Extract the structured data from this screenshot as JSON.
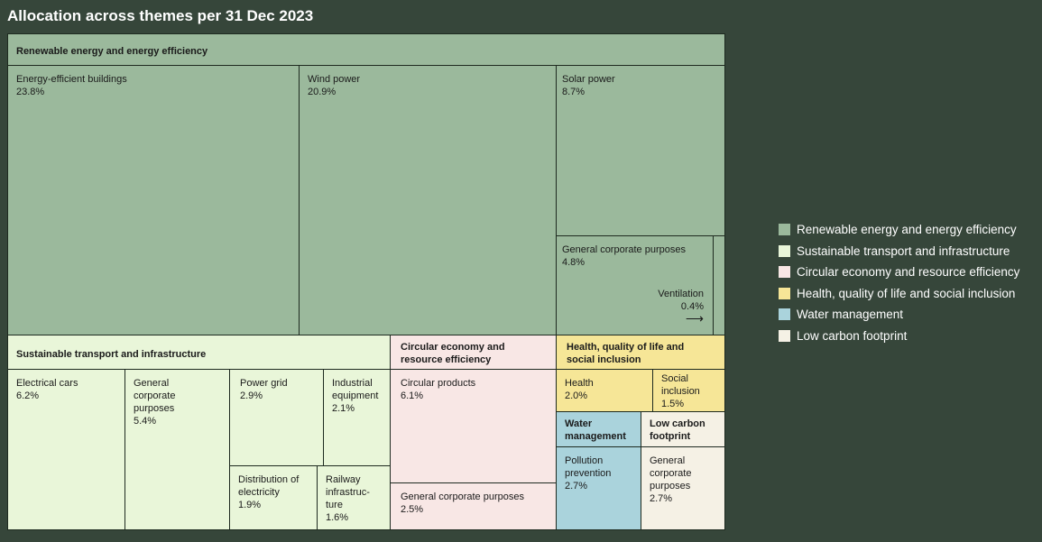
{
  "chart_data": {
    "type": "treemap",
    "title": "Allocation across themes per 31 Dec 2023",
    "unit": "%",
    "groups": [
      {
        "name": "Renewable energy and energy efficiency",
        "color": "#9bb99c",
        "items": [
          {
            "label": "Energy-efficient buildings",
            "value": 23.8,
            "value_label": "23.8%"
          },
          {
            "label": "Wind power",
            "value": 20.9,
            "value_label": "20.9%"
          },
          {
            "label": "Solar power",
            "value": 8.7,
            "value_label": "8.7%"
          },
          {
            "label": "General corporate purposes",
            "value": 4.8,
            "value_label": "4.8%"
          },
          {
            "label": "Ventilation",
            "value": 0.4,
            "value_label": "0.4%"
          }
        ]
      },
      {
        "name": "Sustainable transport and infrastructure",
        "color": "#e9f6d9",
        "items": [
          {
            "label": "Electrical cars",
            "value": 6.2,
            "value_label": "6.2%"
          },
          {
            "label": "General corporate purposes",
            "value": 5.4,
            "value_label": "5.4%"
          },
          {
            "label": "Power grid",
            "value": 2.9,
            "value_label": "2.9%"
          },
          {
            "label": "Industrial equipment",
            "value": 2.1,
            "value_label": "2.1%"
          },
          {
            "label": "Distribution of electricity",
            "value": 1.9,
            "value_label": "1.9%"
          },
          {
            "label": "Railway infrastruc-ture",
            "value": 1.6,
            "value_label": "1.6%"
          }
        ]
      },
      {
        "name": "Circular economy and resource efficiency",
        "color": "#f8e7e5",
        "items": [
          {
            "label": "Circular products",
            "value": 6.1,
            "value_label": "6.1%"
          },
          {
            "label": "General corporate purposes",
            "value": 2.5,
            "value_label": "2.5%"
          }
        ]
      },
      {
        "name": "Health, quality of life and social inclusion",
        "color": "#f6e697",
        "items": [
          {
            "label": "Health",
            "value": 2.0,
            "value_label": "2.0%"
          },
          {
            "label": "Social inclusion",
            "value": 1.5,
            "value_label": "1.5%"
          }
        ]
      },
      {
        "name": "Water management",
        "color": "#aad3dc",
        "items": [
          {
            "label": "Pollution prevention",
            "value": 2.7,
            "value_label": "2.7%"
          }
        ]
      },
      {
        "name": "Low carbon footprint",
        "color": "#f5f1e5",
        "items": [
          {
            "label": "General corporate purposes",
            "value": 2.7,
            "value_label": "2.7%"
          }
        ]
      }
    ],
    "legend": {
      "placement": "right",
      "entries": [
        "Renewable energy and energy efficiency",
        "Sustainable transport and infrastructure",
        "Circular economy and resource efficiency",
        "Health, quality of life and social inclusion",
        "Water management",
        "Low carbon footprint"
      ]
    },
    "arrow_label": "→"
  }
}
